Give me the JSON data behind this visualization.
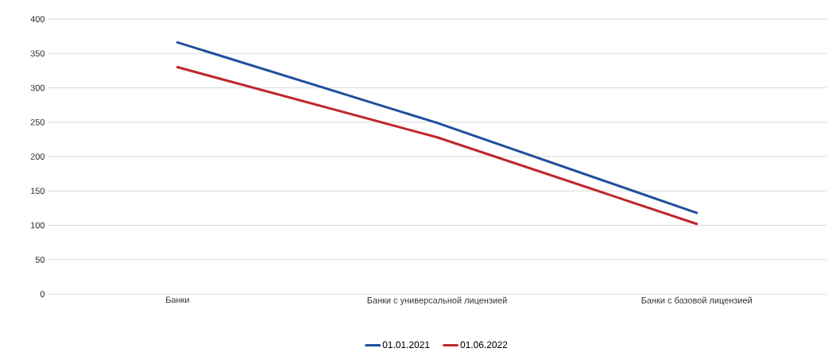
{
  "chart_data": {
    "type": "line",
    "categories": [
      "Банки",
      "Банки с универсальной лицензией",
      "Банки с базовой лицензией"
    ],
    "series": [
      {
        "name": "01.01.2021",
        "color": "#1f4e9c",
        "values": [
          366,
          249,
          118
        ]
      },
      {
        "name": "01.06.2022",
        "color": "#c0272d",
        "values": [
          330,
          228,
          102
        ]
      }
    ],
    "ylim": [
      0,
      400
    ],
    "yticks": [
      0,
      50,
      100,
      150,
      200,
      250,
      300,
      350,
      400
    ],
    "grid": "y",
    "legend": "bottom",
    "marker": "none",
    "line_style": "solid"
  }
}
